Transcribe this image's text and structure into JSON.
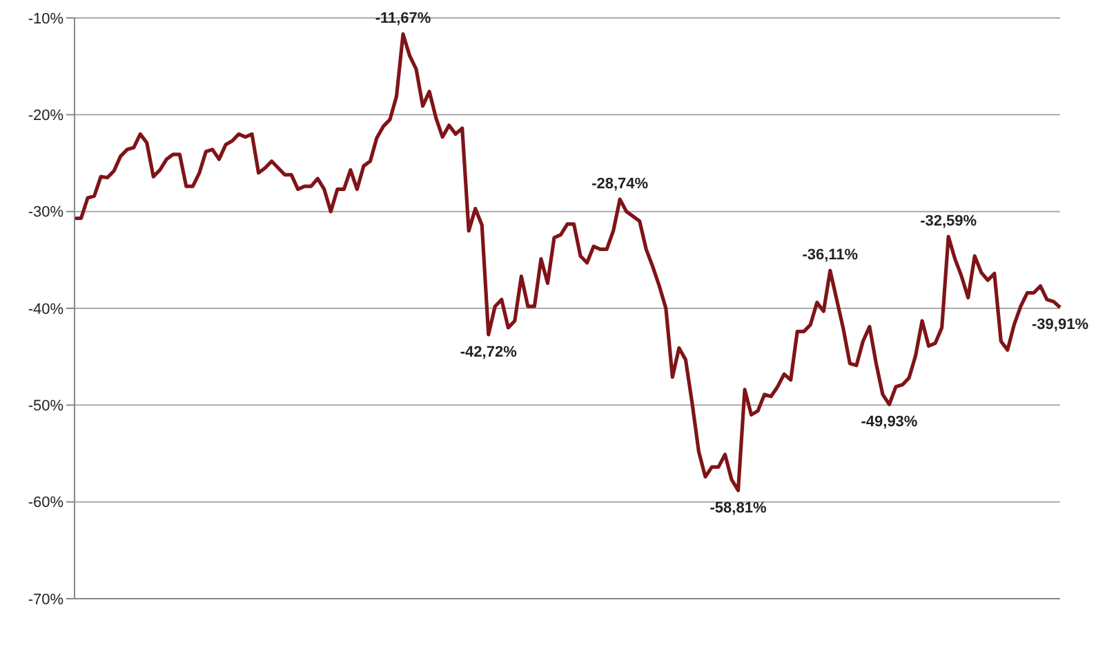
{
  "chart_data": {
    "type": "line",
    "categories": [
      null,
      null,
      null,
      null,
      null,
      null,
      null,
      null,
      null,
      null,
      null,
      null,
      null,
      null,
      null,
      null,
      null,
      null,
      null,
      null,
      null,
      null,
      null,
      null,
      null,
      null,
      null,
      null,
      null,
      null,
      null,
      null,
      null,
      null,
      null,
      null,
      null,
      null,
      null,
      null,
      null,
      null,
      null,
      null,
      null,
      null,
      null,
      null,
      null,
      null,
      null,
      null,
      null,
      null,
      null,
      null,
      null,
      null,
      null,
      null,
      null,
      null,
      null,
      null,
      null,
      null,
      null,
      null,
      null,
      null,
      null,
      null,
      null,
      null,
      null,
      null,
      null,
      null,
      null,
      null,
      null,
      null,
      null,
      null,
      null,
      null,
      null,
      null,
      null,
      null,
      null,
      null,
      null,
      null,
      null,
      null,
      null,
      null,
      null,
      null,
      null,
      null,
      null,
      null,
      null,
      null,
      null,
      null,
      null,
      null,
      null,
      null,
      null,
      null,
      null,
      null,
      null,
      null,
      null,
      null,
      null,
      null,
      null,
      null,
      null,
      null,
      null,
      null,
      null,
      null,
      null,
      null,
      null,
      null,
      null,
      null,
      null,
      null,
      null,
      null,
      null,
      null,
      null,
      null,
      null,
      null,
      null,
      null,
      null,
      null,
      null
    ],
    "series": [
      {
        "color": "#7f1418",
        "values": [
          -30.7,
          -30.7,
          -28.6,
          -28.4,
          -26.4,
          -26.5,
          -25.8,
          -24.3,
          -23.6,
          -23.4,
          -22.0,
          -22.9,
          -26.4,
          -25.7,
          -24.6,
          -24.1,
          -24.1,
          -27.4,
          -27.4,
          -26.0,
          -23.8,
          -23.6,
          -24.6,
          -23.1,
          -22.7,
          -22.0,
          -22.3,
          -22.0,
          -26.0,
          -25.5,
          -24.8,
          -25.5,
          -26.2,
          -26.2,
          -27.7,
          -27.4,
          -27.4,
          -26.6,
          -27.7,
          -30.0,
          -27.7,
          -27.7,
          -25.7,
          -27.7,
          -25.3,
          -24.8,
          -22.4,
          -21.2,
          -20.5,
          -18.1,
          -11.67,
          -13.9,
          -15.3,
          -19.1,
          -17.6,
          -20.3,
          -22.3,
          -21.1,
          -22.0,
          -21.4,
          -32.0,
          -29.7,
          -31.4,
          -42.72,
          -39.8,
          -39.1,
          -42.0,
          -41.3,
          -36.7,
          -39.8,
          -39.8,
          -34.9,
          -37.4,
          -32.7,
          -32.4,
          -31.3,
          -31.3,
          -34.6,
          -35.3,
          -33.6,
          -33.9,
          -33.9,
          -32.0,
          -28.74,
          -30.0,
          -30.5,
          -31.0,
          -33.9,
          -35.7,
          -37.7,
          -40.0,
          -47.1,
          -44.1,
          -45.3,
          -49.8,
          -54.8,
          -57.4,
          -56.4,
          -56.4,
          -55.1,
          -57.7,
          -58.81,
          -48.4,
          -51.0,
          -50.6,
          -48.9,
          -49.1,
          -48.1,
          -46.8,
          -47.4,
          -42.4,
          -42.4,
          -41.7,
          -39.4,
          -40.3,
          -36.11,
          -39.1,
          -42.1,
          -45.7,
          -45.9,
          -43.4,
          -41.9,
          -45.7,
          -48.9,
          -49.93,
          -48.1,
          -47.9,
          -47.2,
          -44.9,
          -41.3,
          -43.9,
          -43.6,
          -42.0,
          -32.59,
          -34.9,
          -36.7,
          -38.9,
          -34.6,
          -36.3,
          -37.1,
          -36.4,
          -43.4,
          -44.3,
          -41.7,
          -39.8,
          -38.4,
          -38.4,
          -37.7,
          -39.1,
          -39.3,
          -39.91
        ]
      }
    ],
    "ylim": [
      -70,
      -10
    ],
    "yticks": [
      {
        "value": -70,
        "label": "-70%"
      },
      {
        "value": -60,
        "label": "-60%"
      },
      {
        "value": -50,
        "label": "-50%"
      },
      {
        "value": -40,
        "label": "-40%"
      },
      {
        "value": -30,
        "label": "-30%"
      },
      {
        "value": -20,
        "label": "-20%"
      },
      {
        "value": -10,
        "label": "-10%"
      }
    ],
    "grid": "y",
    "tick_labels": "y",
    "annotations": [
      {
        "text": "-11,67%",
        "y": -11.67
      },
      {
        "text": "-42,72%",
        "y": -42.72
      },
      {
        "text": "-28,74%",
        "y": -28.74
      },
      {
        "text": "-58,81%",
        "y": -58.81
      },
      {
        "text": "-36,11%",
        "y": -36.11
      },
      {
        "text": "-49,93%",
        "y": -49.93
      },
      {
        "text": "-32,59%",
        "y": -32.59
      },
      {
        "text": "-39,91%",
        "y": -39.91
      }
    ]
  }
}
